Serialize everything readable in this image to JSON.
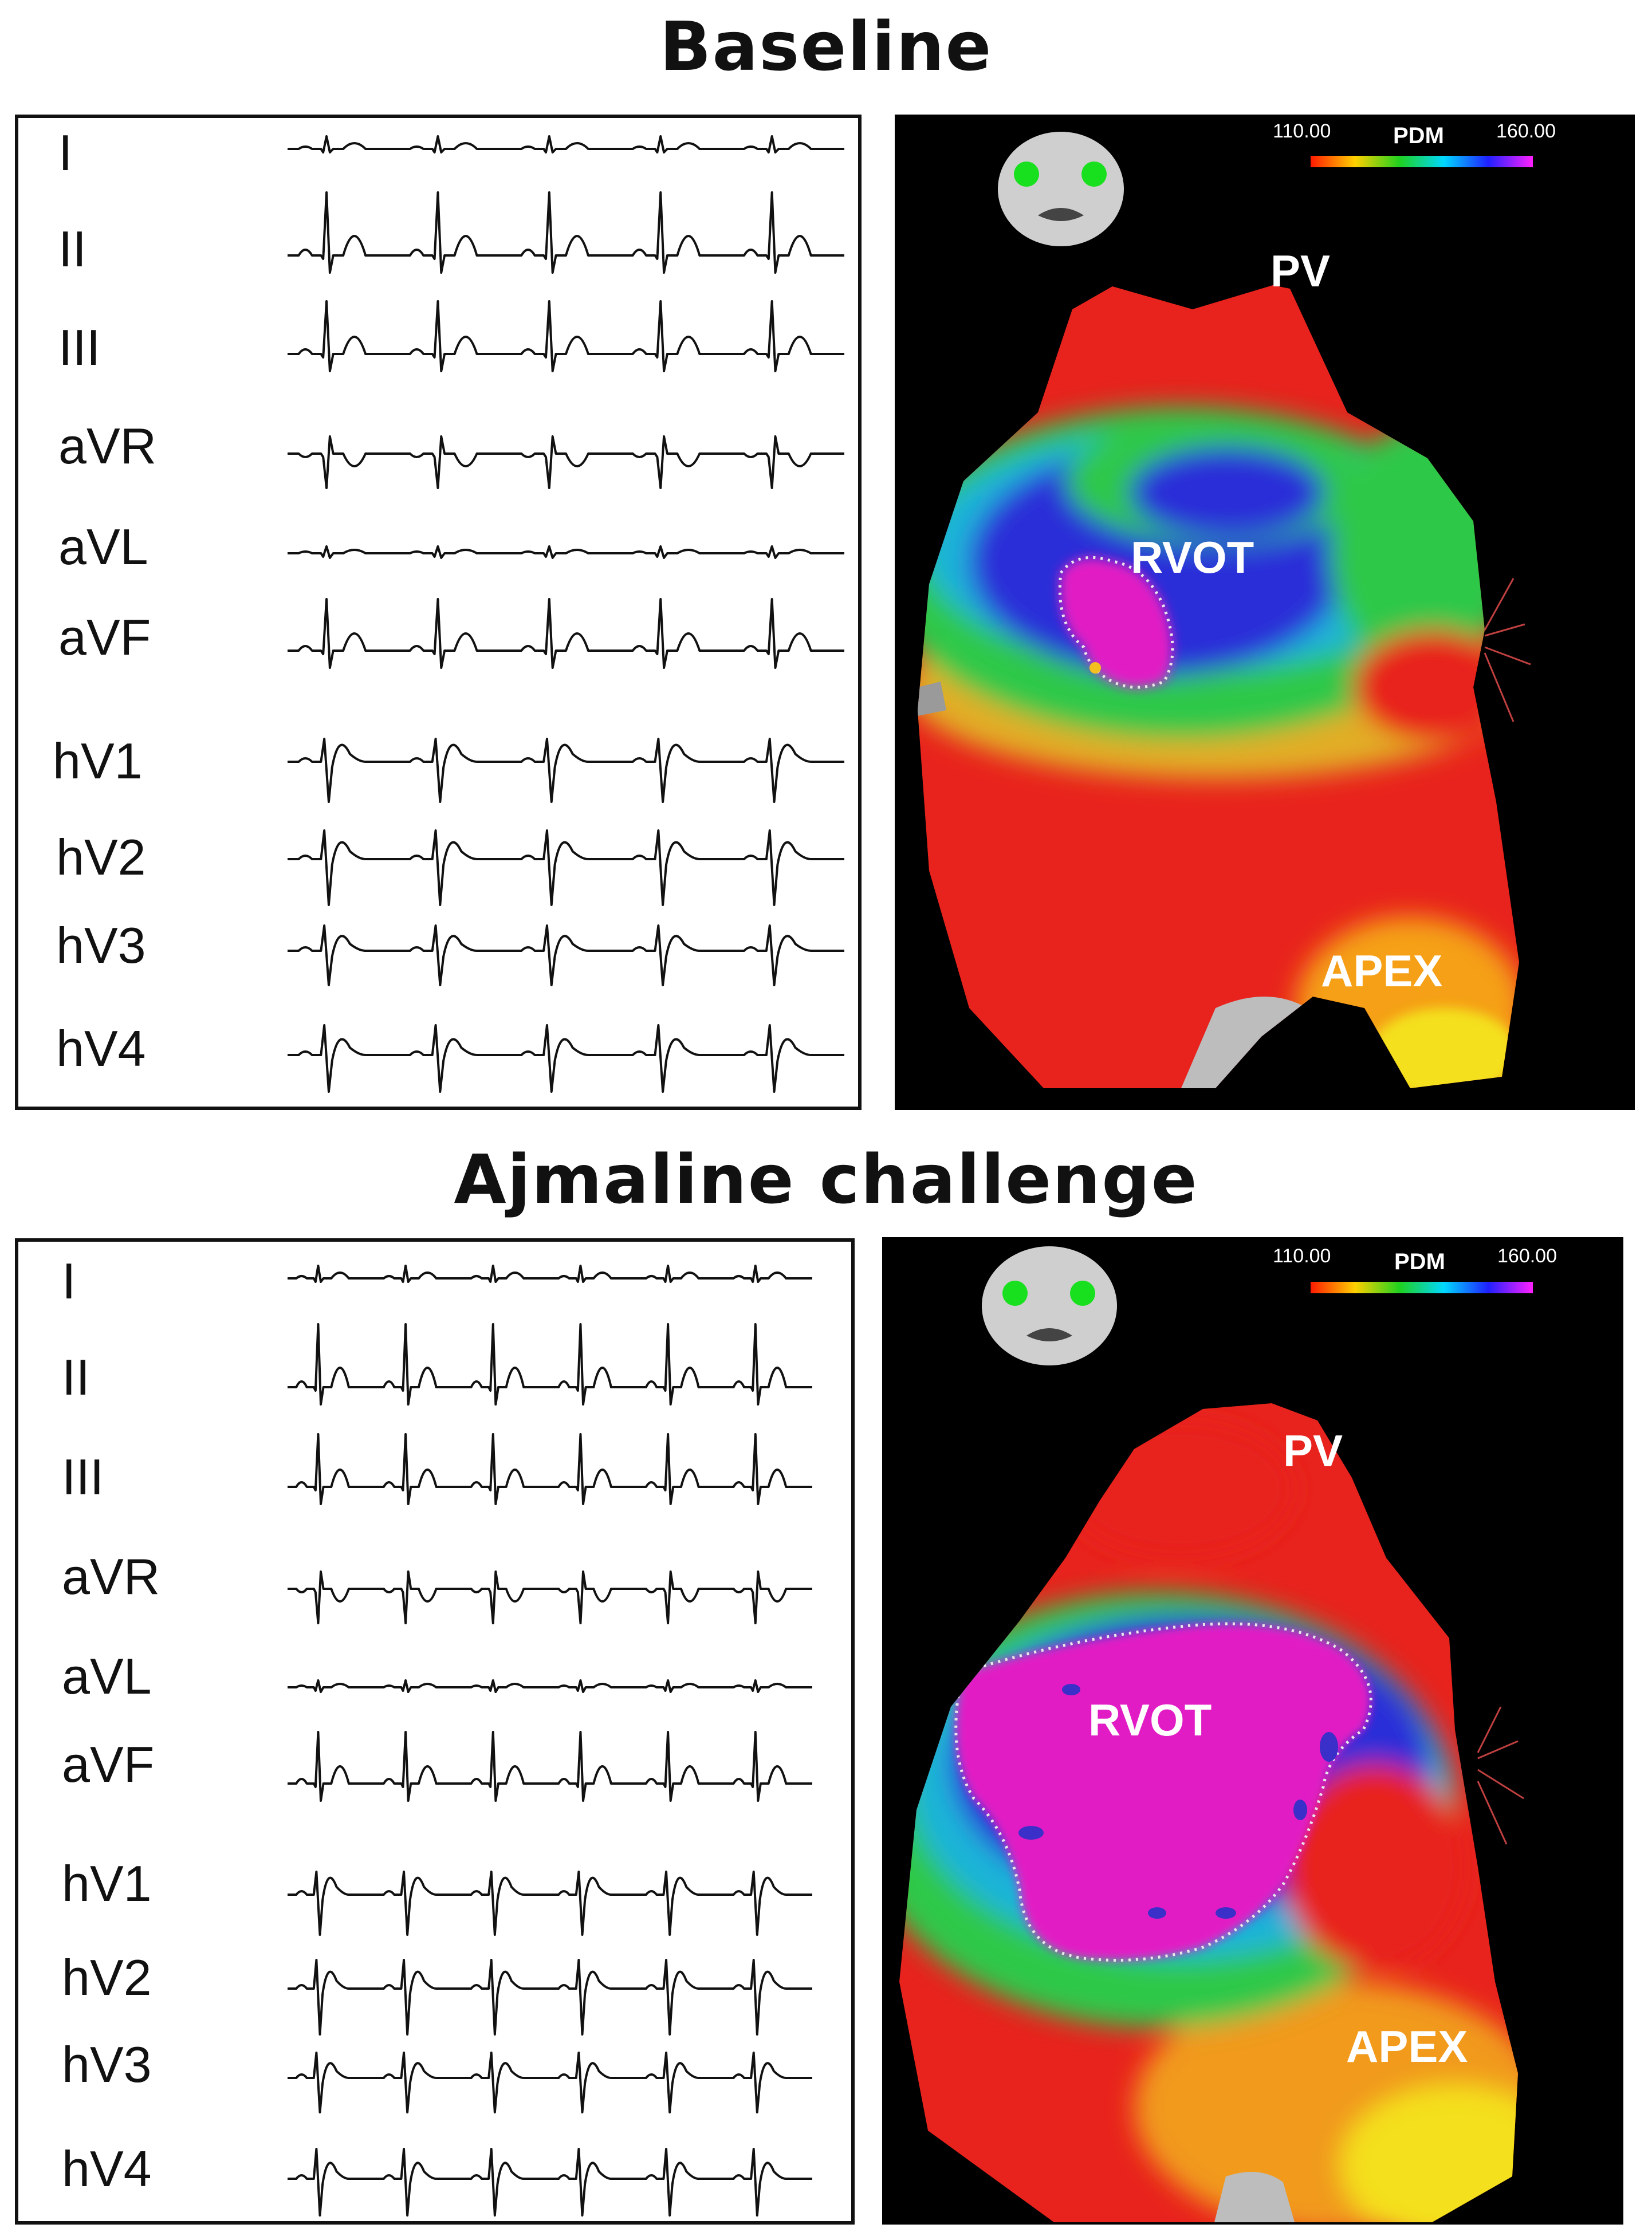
{
  "panels": [
    {
      "id": "baseline",
      "title": "Baseline",
      "leads": [
        "I",
        "II",
        "III",
        "aVR",
        "aVL",
        "aVF",
        "hV1",
        "hV2",
        "hV3",
        "hV4"
      ],
      "map": {
        "scale_min": "110.00",
        "scale_label": "PDM",
        "scale_max": "160.00",
        "label_pv": "PV",
        "label_rvot": "RVOT",
        "label_apex": "APEX"
      }
    },
    {
      "id": "ajmaline",
      "title": "Ajmaline challenge",
      "leads": [
        "I",
        "II",
        "III",
        "aVR",
        "aVL",
        "aVF",
        "hV1",
        "hV2",
        "hV3",
        "hV4"
      ],
      "map": {
        "scale_min": "110.00",
        "scale_label": "PDM",
        "scale_max": "160.00",
        "label_pv": "PV",
        "label_rvot": "RVOT",
        "label_apex": "APEX"
      }
    }
  ],
  "colors": {
    "map_red": "#e8221e",
    "map_green": "#2fc84a",
    "map_blue": "#2a2fd8",
    "map_magenta": "#e21cc4",
    "map_yellow": "#f4e01a",
    "background": "#000000"
  }
}
